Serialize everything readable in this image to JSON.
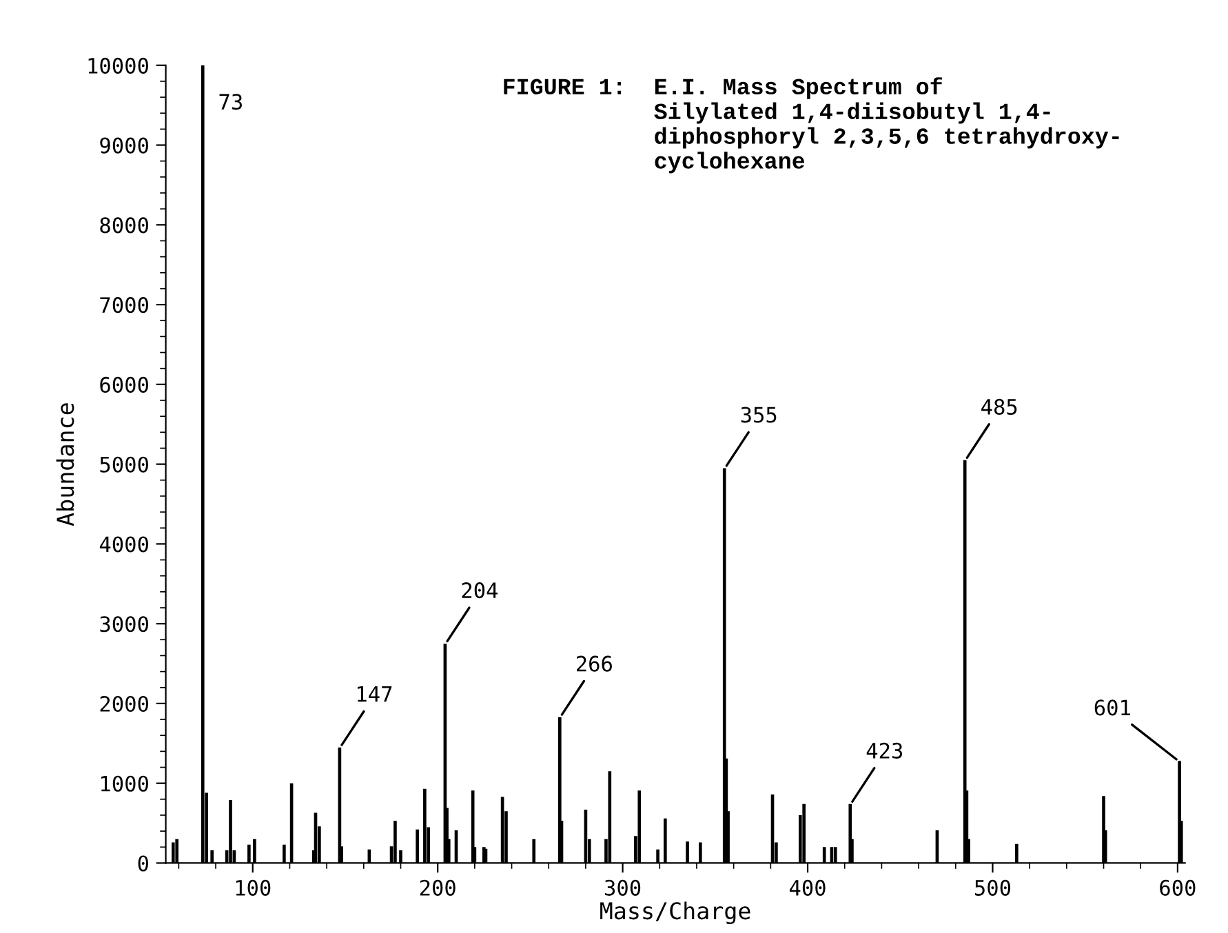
{
  "chart_data": {
    "type": "bar",
    "title": "FIGURE 1:  E.I. Mass Spectrum of\n           Silylated 1,4-diisobutyl 1,4-\n           diphosphoryl 2,3,5,6 tetrahydroxy-\n           cyclohexane",
    "xlabel": "Mass/Charge",
    "ylabel": "Abundance",
    "x": [
      57,
      59,
      73,
      75,
      78,
      86,
      88,
      90,
      98,
      101,
      117,
      121,
      133,
      134,
      136,
      147,
      148,
      163,
      175,
      177,
      180,
      189,
      193,
      195,
      204,
      205,
      206,
      210,
      219,
      220,
      225,
      226,
      235,
      237,
      252,
      266,
      267,
      280,
      282,
      291,
      293,
      307,
      309,
      319,
      323,
      335,
      342,
      355,
      356,
      357,
      381,
      383,
      396,
      398,
      409,
      413,
      415,
      423,
      424,
      470,
      485,
      486,
      487,
      513,
      560,
      561,
      601,
      602
    ],
    "values": [
      250,
      290,
      10000,
      870,
      150,
      150,
      780,
      150,
      220,
      290,
      220,
      990,
      150,
      620,
      450,
      1440,
      200,
      160,
      200,
      520,
      150,
      410,
      920,
      440,
      2740,
      680,
      290,
      400,
      900,
      190,
      190,
      170,
      820,
      640,
      290,
      1820,
      520,
      660,
      290,
      290,
      1140,
      330,
      900,
      160,
      550,
      260,
      250,
      4940,
      1300,
      640,
      850,
      250,
      590,
      730,
      190,
      190,
      190,
      730,
      290,
      400,
      5040,
      900,
      290,
      230,
      830,
      400,
      1270,
      520
    ],
    "color": "#000000",
    "xlim": [
      53,
      604
    ],
    "xticks": [
      100,
      200,
      300,
      400,
      500,
      600
    ],
    "ylim": [
      0,
      10000
    ],
    "yticks": [
      0,
      1000,
      2000,
      3000,
      4000,
      5000,
      6000,
      7000,
      8000,
      9000,
      10000
    ],
    "annotations": [
      {
        "text": "73",
        "x": 73,
        "y": 10000
      },
      {
        "text": "147",
        "x": 147,
        "y": 1440
      },
      {
        "text": "204",
        "x": 204,
        "y": 2740
      },
      {
        "text": "266",
        "x": 266,
        "y": 1820
      },
      {
        "text": "355",
        "x": 355,
        "y": 4940
      },
      {
        "text": "423",
        "x": 423,
        "y": 730
      },
      {
        "text": "485",
        "x": 485,
        "y": 5040
      },
      {
        "text": "601",
        "x": 601,
        "y": 1270
      }
    ],
    "grid": false,
    "legend": false
  }
}
